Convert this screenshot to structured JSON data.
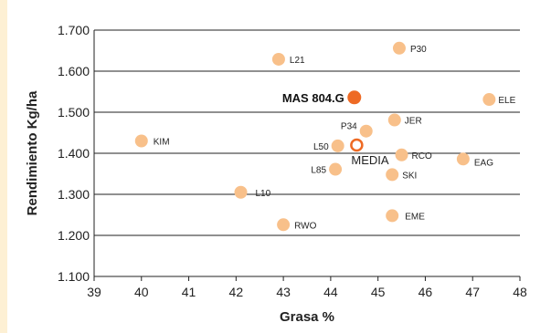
{
  "chart_data": {
    "type": "scatter",
    "title": "",
    "xlabel": "Grasa %",
    "ylabel": "Rendimiento Kg/ha",
    "xlim": [
      39,
      48
    ],
    "ylim": [
      1100,
      1700
    ],
    "xticks": [
      39,
      40,
      41,
      42,
      43,
      44,
      45,
      46,
      47,
      48
    ],
    "yticks": [
      1100,
      1200,
      1300,
      1400,
      1500,
      1600,
      1700
    ],
    "ytick_labels": [
      "1.100",
      "1.200",
      "1.300",
      "1.400",
      "1.500",
      "1.600",
      "1.700"
    ],
    "grid": "horizontal",
    "points": [
      {
        "label": "KIM",
        "x": 40.0,
        "y": 1430,
        "kind": "normal"
      },
      {
        "label": "L10",
        "x": 42.1,
        "y": 1305,
        "kind": "normal"
      },
      {
        "label": "L21",
        "x": 42.9,
        "y": 1629,
        "kind": "normal"
      },
      {
        "label": "RWO",
        "x": 43.0,
        "y": 1226,
        "kind": "normal"
      },
      {
        "label": "L85",
        "x": 44.1,
        "y": 1361,
        "kind": "normal"
      },
      {
        "label": "L50",
        "x": 44.15,
        "y": 1418,
        "kind": "normal"
      },
      {
        "label": "P34",
        "x": 44.75,
        "y": 1454,
        "kind": "normal"
      },
      {
        "label": "SKI",
        "x": 45.3,
        "y": 1348,
        "kind": "normal"
      },
      {
        "label": "EME",
        "x": 45.3,
        "y": 1248,
        "kind": "normal"
      },
      {
        "label": "JER",
        "x": 45.35,
        "y": 1481,
        "kind": "normal"
      },
      {
        "label": "P30",
        "x": 45.45,
        "y": 1656,
        "kind": "normal"
      },
      {
        "label": "RCO",
        "x": 45.5,
        "y": 1396,
        "kind": "normal"
      },
      {
        "label": "EAG",
        "x": 46.8,
        "y": 1386,
        "kind": "normal"
      },
      {
        "label": "ELE",
        "x": 47.35,
        "y": 1531,
        "kind": "normal"
      },
      {
        "label": "MAS 804.G",
        "x": 44.5,
        "y": 1536,
        "kind": "highlight"
      },
      {
        "label": "MEDIA",
        "x": 44.55,
        "y": 1420,
        "kind": "average"
      }
    ],
    "colors": {
      "point": "#f8c08a",
      "highlight": "#ee6a24",
      "average_ring": "#ee6a24",
      "grid": "#222222"
    }
  }
}
